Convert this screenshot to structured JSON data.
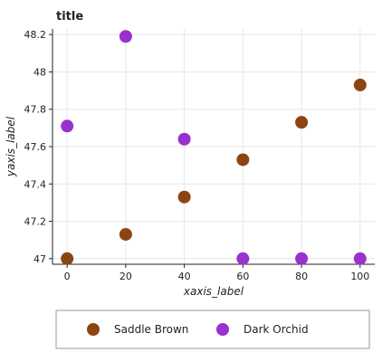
{
  "chart_data": {
    "type": "scatter",
    "title": "title",
    "xlabel": "xaxis_label",
    "ylabel": "yaxis_label",
    "xlim": [
      -5,
      105
    ],
    "ylim": [
      46.97,
      48.23
    ],
    "x_ticks": [
      0,
      20,
      40,
      60,
      80,
      100
    ],
    "y_ticks": [
      47.0,
      47.2,
      47.4,
      47.6,
      47.8,
      48.0,
      48.2
    ],
    "x_tick_labels": [
      "0",
      "20",
      "40",
      "60",
      "80",
      "100"
    ],
    "y_tick_labels": [
      "47",
      "47.2",
      "47.4",
      "47.6",
      "47.8",
      "48",
      "48.2"
    ],
    "grid": true,
    "legend_position": "bottom",
    "series": [
      {
        "name": "Saddle Brown",
        "color": "#8B4513",
        "x": [
          0,
          20,
          40,
          60,
          80,
          100
        ],
        "y": [
          47.0,
          47.13,
          47.33,
          47.53,
          47.73,
          47.93
        ]
      },
      {
        "name": "Dark Orchid",
        "color": "#9932CC",
        "x": [
          0,
          20,
          40,
          60,
          80,
          100
        ],
        "y": [
          47.71,
          48.19,
          47.64,
          47.0,
          47.0,
          47.0
        ]
      }
    ]
  }
}
